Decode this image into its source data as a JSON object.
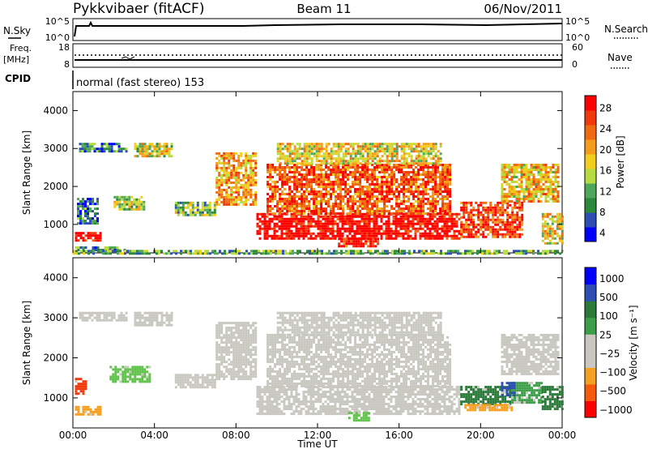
{
  "header": {
    "station": "Pykkvibaer (fitACF)",
    "beam": "Beam 11",
    "date": "06/Nov/2011"
  },
  "strip": {
    "nsky_label": "N.Sky",
    "nsky_ticks": [
      "10^5",
      "10^0"
    ],
    "nsearch_label": "N.Search",
    "nsearch_ticks": [
      "10^5",
      "10^0"
    ],
    "freq_label": "Freq.",
    "freq_unit": "[MHz]",
    "freq_ticks": [
      "18",
      "8"
    ],
    "nave_label": "Nave",
    "nave_ticks": [
      "60",
      "0"
    ],
    "cpid_label": "CPID",
    "cpid_text": "normal (fast stereo) 153"
  },
  "chart_data": [
    {
      "type": "heatmap",
      "name": "power",
      "ylabel": "Slant Range [km]",
      "xlabel": "",
      "xlim_hours": [
        0,
        24
      ],
      "ylim": [
        250,
        4500
      ],
      "yticks": [
        "1000",
        "2000",
        "3000",
        "4000"
      ],
      "colorbar": {
        "label": "Power [dB]",
        "ticks": [
          "28",
          "24",
          "20",
          "16",
          "12",
          "8",
          "4"
        ],
        "colors": [
          "#0000ff",
          "#2d4fb5",
          "#2a8a3a",
          "#4fa75a",
          "#b7dc3f",
          "#f0ce1b",
          "#f59d1a",
          "#f06a12",
          "#f03a0c",
          "#ff0000"
        ]
      },
      "regions": [
        {
          "t0": 0.1,
          "t1": 1.4,
          "r0": 560,
          "r1": 800,
          "level": 0.95
        },
        {
          "t0": 0.1,
          "t1": 2.5,
          "r0": 320,
          "r1": 420,
          "level": 0.3
        },
        {
          "t0": 0.2,
          "t1": 1.2,
          "r0": 1050,
          "r1": 1700,
          "level": 0.2
        },
        {
          "t0": 0.3,
          "t1": 2.6,
          "r0": 2950,
          "r1": 3150,
          "level": 0.25
        },
        {
          "t0": 2.0,
          "t1": 3.5,
          "r0": 1400,
          "r1": 1750,
          "level": 0.45
        },
        {
          "t0": 3.0,
          "t1": 4.8,
          "r0": 2800,
          "r1": 3150,
          "level": 0.5
        },
        {
          "t0": 5.0,
          "t1": 7.0,
          "r0": 1250,
          "r1": 1600,
          "level": 0.4
        },
        {
          "t0": 7.0,
          "t1": 9.0,
          "r0": 1500,
          "r1": 2900,
          "level": 0.65
        },
        {
          "t0": 9.0,
          "t1": 19.0,
          "r0": 600,
          "r1": 1300,
          "level": 1.0
        },
        {
          "t0": 9.5,
          "t1": 18.5,
          "r0": 1300,
          "r1": 2600,
          "level": 0.8
        },
        {
          "t0": 10.0,
          "t1": 18.0,
          "r0": 2600,
          "r1": 3150,
          "level": 0.55
        },
        {
          "t0": 13.0,
          "t1": 15.0,
          "r0": 400,
          "r1": 650,
          "level": 0.9
        },
        {
          "t0": 19.0,
          "t1": 22.0,
          "r0": 700,
          "r1": 1600,
          "level": 0.85
        },
        {
          "t0": 21.0,
          "t1": 23.8,
          "r0": 1600,
          "r1": 2600,
          "level": 0.6
        },
        {
          "t0": 23.0,
          "t1": 24.0,
          "r0": 500,
          "r1": 1300,
          "level": 0.55
        },
        {
          "t0": 0.0,
          "t1": 24.0,
          "r0": 260,
          "r1": 330,
          "level": 0.35
        }
      ]
    },
    {
      "type": "heatmap",
      "name": "velocity",
      "ylabel": "Slant Range [km]",
      "xlabel": "Time UT",
      "xlim_hours": [
        0,
        24
      ],
      "xticks": [
        "00:00",
        "04:00",
        "08:00",
        "12:00",
        "16:00",
        "20:00",
        "00:00"
      ],
      "ylim": [
        250,
        4500
      ],
      "yticks": [
        "1000",
        "2000",
        "3000",
        "4000"
      ],
      "colorbar": {
        "label": "Velocity [m s⁻¹]",
        "ticks": [
          "1000",
          "500",
          "100",
          "25",
          "−25",
          "−100",
          "−500",
          "−1000"
        ],
        "colors": [
          "#ff0000",
          "#f65a0c",
          "#f5a020",
          "#c8c8c0",
          "#c8c8c0",
          "#3d9e4a",
          "#2a7a3a",
          "#2d4fb5",
          "#0000ff"
        ]
      },
      "regions": [
        {
          "t0": 0.1,
          "t1": 1.4,
          "r0": 560,
          "r1": 800,
          "color": "#f5a020"
        },
        {
          "t0": 0.1,
          "t1": 0.6,
          "r0": 1100,
          "r1": 1500,
          "color": "#f03a0c"
        },
        {
          "t0": 0.3,
          "t1": 2.6,
          "r0": 2950,
          "r1": 3150,
          "color": "#c8c8c0"
        },
        {
          "t0": 1.8,
          "t1": 3.8,
          "r0": 1400,
          "r1": 1800,
          "color": "#5fc24a"
        },
        {
          "t0": 3.0,
          "t1": 4.8,
          "r0": 2800,
          "r1": 3150,
          "color": "#c8c8c0"
        },
        {
          "t0": 5.0,
          "t1": 7.0,
          "r0": 1250,
          "r1": 1600,
          "color": "#c8c8c0"
        },
        {
          "t0": 7.0,
          "t1": 9.0,
          "r0": 1500,
          "r1": 2900,
          "color": "#c8c8c0"
        },
        {
          "t0": 9.0,
          "t1": 19.0,
          "r0": 600,
          "r1": 1300,
          "color": "#c8c8c0"
        },
        {
          "t0": 9.5,
          "t1": 18.5,
          "r0": 1300,
          "r1": 2600,
          "color": "#c8c8c0"
        },
        {
          "t0": 10.0,
          "t1": 18.0,
          "r0": 2600,
          "r1": 3150,
          "color": "#c8c8c0"
        },
        {
          "t0": 13.5,
          "t1": 14.5,
          "r0": 450,
          "r1": 650,
          "color": "#5fc24a"
        },
        {
          "t0": 19.0,
          "t1": 21.5,
          "r0": 850,
          "r1": 1300,
          "color": "#2a7a3a"
        },
        {
          "t0": 19.2,
          "t1": 21.5,
          "r0": 700,
          "r1": 850,
          "color": "#f5a020"
        },
        {
          "t0": 21.5,
          "t1": 23.0,
          "r0": 900,
          "r1": 1400,
          "color": "#3d9e4a"
        },
        {
          "t0": 21.0,
          "t1": 23.8,
          "r0": 1600,
          "r1": 2600,
          "color": "#c8c8c0"
        },
        {
          "t0": 23.0,
          "t1": 24.0,
          "r0": 700,
          "r1": 1300,
          "color": "#2a7a3a"
        },
        {
          "t0": 21.0,
          "t1": 21.6,
          "r0": 1050,
          "r1": 1400,
          "color": "#2d4fb5"
        }
      ]
    }
  ]
}
